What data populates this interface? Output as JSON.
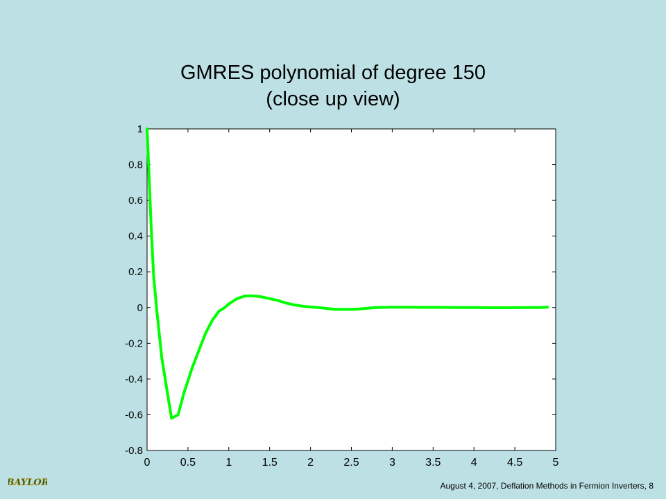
{
  "slide": {
    "title_line1": "GMRES polynomial of degree 150",
    "title_line2": "(close up view)",
    "footer": "August 4, 2007,  Deflation Methods in Fermion Inverters,  8",
    "logo_text": "BAYLOR"
  },
  "colors": {
    "background": "#bde0e4",
    "plot_area": "#ffffff",
    "line": "#00ff00",
    "logo": "#1f5a2a"
  },
  "chart_data": {
    "type": "line",
    "title": "",
    "xlabel": "",
    "ylabel": "",
    "xlim": [
      0,
      5
    ],
    "ylim": [
      -0.8,
      1
    ],
    "xticks": [
      0,
      0.5,
      1,
      1.5,
      2,
      2.5,
      3,
      3.5,
      4,
      4.5,
      5
    ],
    "xtick_labels": [
      "0",
      "0.5",
      "1",
      "1.5",
      "2",
      "2.5",
      "3",
      "3.5",
      "4",
      "4.5",
      "5"
    ],
    "yticks": [
      1,
      0.8,
      0.6,
      0.4,
      0.2,
      0,
      -0.2,
      -0.4,
      -0.6,
      -0.8
    ],
    "ytick_labels": [
      "1",
      "0.8",
      "0.6",
      "0.4",
      "0.2",
      "0",
      "-0.2",
      "-0.4",
      "-0.6",
      "-0.8"
    ],
    "grid": false,
    "legend": "none",
    "series": [
      {
        "color": "#00ff00",
        "x": [
          0,
          0.02,
          0.05,
          0.08,
          0.12,
          0.18,
          0.25,
          0.3,
          0.38,
          0.45,
          0.55,
          0.65,
          0.72,
          0.8,
          0.88,
          0.95,
          1.0,
          1.1,
          1.2,
          1.3,
          1.4,
          1.5,
          1.6,
          1.7,
          1.8,
          1.9,
          2.0,
          2.1,
          2.2,
          2.3,
          2.4,
          2.5,
          2.6,
          2.7,
          2.8,
          2.9,
          3.0,
          3.2,
          3.4,
          3.6,
          3.8,
          4.0,
          4.2,
          4.4,
          4.6,
          4.8,
          4.9
        ],
        "y": [
          1,
          0.78,
          0.45,
          0.18,
          -0.02,
          -0.28,
          -0.48,
          -0.62,
          -0.6,
          -0.48,
          -0.34,
          -0.22,
          -0.14,
          -0.07,
          -0.02,
          0.0,
          0.02,
          0.05,
          0.065,
          0.065,
          0.06,
          0.05,
          0.04,
          0.025,
          0.015,
          0.008,
          0.003,
          0.0,
          -0.005,
          -0.01,
          -0.01,
          -0.01,
          -0.008,
          -0.004,
          0.0,
          0.001,
          0.002,
          0.002,
          0.001,
          0.001,
          0.0,
          0.0,
          -0.001,
          -0.001,
          0.0,
          0.0,
          0.002
        ]
      }
    ]
  }
}
